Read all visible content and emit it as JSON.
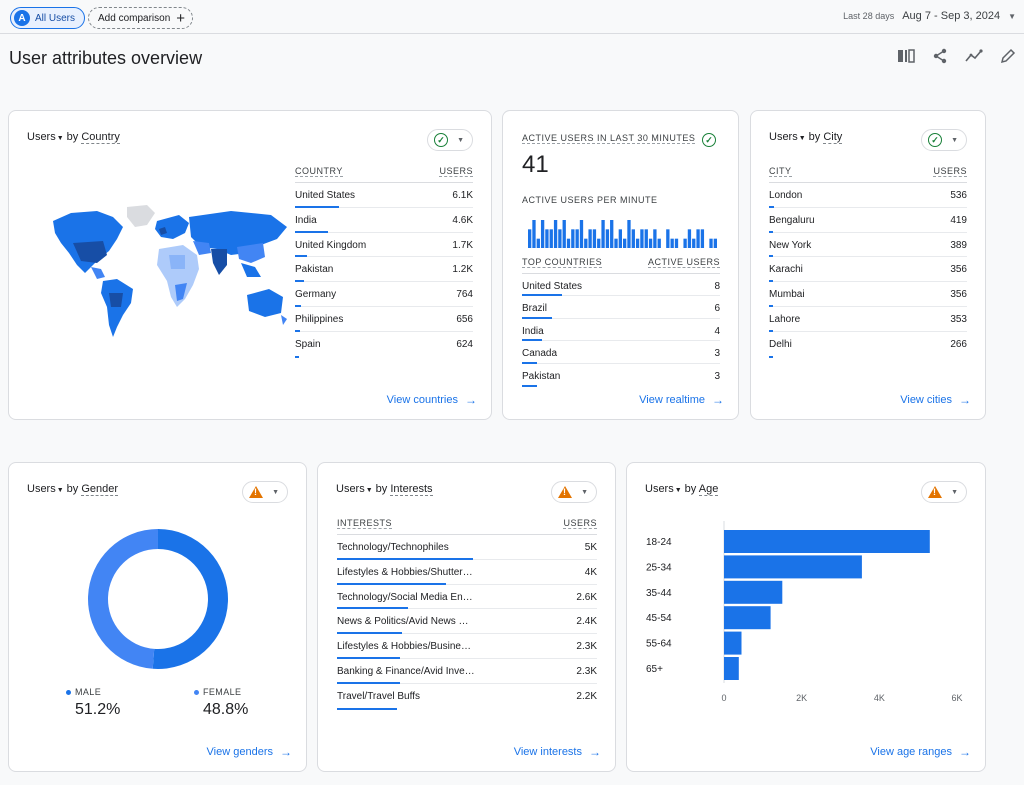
{
  "topbar": {
    "all_users_avatar": "A",
    "all_users_label": "All Users",
    "add_comparison_label": "Add comparison",
    "date_label": "Last 28 days",
    "date_range": "Aug 7 - Sep 3, 2024"
  },
  "page_title": "User attributes overview",
  "colors": {
    "accent": "#1a73e8",
    "accent_light": "#4285f4",
    "ok": "#188038",
    "warn": "#e37400"
  },
  "country_card": {
    "metric": "Users",
    "dim": "Country",
    "col_dim": "COUNTRY",
    "col_metric": "USERS",
    "rows": [
      {
        "name": "United States",
        "value": "6.1K",
        "share": 1.0
      },
      {
        "name": "India",
        "value": "4.6K",
        "share": 0.75
      },
      {
        "name": "United Kingdom",
        "value": "1.7K",
        "share": 0.28
      },
      {
        "name": "Pakistan",
        "value": "1.2K",
        "share": 0.2
      },
      {
        "name": "Germany",
        "value": "764",
        "share": 0.13
      },
      {
        "name": "Philippines",
        "value": "656",
        "share": 0.11
      },
      {
        "name": "Spain",
        "value": "624",
        "share": 0.1
      }
    ],
    "link": "View countries"
  },
  "realtime_card": {
    "title": "ACTIVE USERS IN LAST 30 MINUTES",
    "value": "41",
    "per_minute_label": "ACTIVE USERS PER MINUTE",
    "per_minute": [
      2,
      3,
      1,
      3,
      2,
      2,
      3,
      2,
      3,
      1,
      2,
      2,
      3,
      1,
      2,
      2,
      1,
      3,
      2,
      3,
      1,
      2,
      1,
      3,
      2,
      1,
      2,
      2,
      1,
      2,
      1,
      0,
      2,
      1,
      1,
      0,
      1,
      2,
      1,
      2,
      2,
      0,
      1,
      1
    ],
    "col_dim": "TOP COUNTRIES",
    "col_metric": "ACTIVE USERS",
    "rows": [
      {
        "name": "United States",
        "value": "8",
        "share": 1.0
      },
      {
        "name": "Brazil",
        "value": "6",
        "share": 0.75
      },
      {
        "name": "India",
        "value": "4",
        "share": 0.5
      },
      {
        "name": "Canada",
        "value": "3",
        "share": 0.38
      },
      {
        "name": "Pakistan",
        "value": "3",
        "share": 0.38
      }
    ],
    "link": "View realtime"
  },
  "city_card": {
    "metric": "Users",
    "dim": "City",
    "col_dim": "CITY",
    "col_metric": "USERS",
    "rows": [
      {
        "name": "London",
        "value": "536",
        "share": 0.04
      },
      {
        "name": "Bengaluru",
        "value": "419",
        "share": 0.03
      },
      {
        "name": "New York",
        "value": "389",
        "share": 0.03
      },
      {
        "name": "Karachi",
        "value": "356",
        "share": 0.025
      },
      {
        "name": "Mumbai",
        "value": "356",
        "share": 0.025
      },
      {
        "name": "Lahore",
        "value": "353",
        "share": 0.025
      },
      {
        "name": "Delhi",
        "value": "266",
        "share": 0.02
      }
    ],
    "link": "View cities"
  },
  "gender_card": {
    "metric": "Users",
    "dim": "Gender",
    "male_label": "MALE",
    "male_pct": "51.2%",
    "female_label": "FEMALE",
    "female_pct": "48.8%",
    "male_share": 0.512,
    "link": "View genders"
  },
  "interests_card": {
    "metric": "Users",
    "dim": "Interests",
    "col_dim": "INTERESTS",
    "col_metric": "USERS",
    "rows": [
      {
        "name": "Technology/Technophiles",
        "value": "5K",
        "share": 1.0
      },
      {
        "name": "Lifestyles & Hobbies/Shutter…",
        "value": "4K",
        "share": 0.8
      },
      {
        "name": "Technology/Social Media En…",
        "value": "2.6K",
        "share": 0.52
      },
      {
        "name": "News & Politics/Avid News …",
        "value": "2.4K",
        "share": 0.48
      },
      {
        "name": "Lifestyles & Hobbies/Busine…",
        "value": "2.3K",
        "share": 0.46
      },
      {
        "name": "Banking & Finance/Avid Inve…",
        "value": "2.3K",
        "share": 0.46
      },
      {
        "name": "Travel/Travel Buffs",
        "value": "2.2K",
        "share": 0.44
      }
    ],
    "link": "View interests"
  },
  "age_card": {
    "metric": "Users",
    "dim": "Age",
    "link": "View age ranges",
    "chart_data": {
      "type": "bar",
      "orientation": "horizontal",
      "categories": [
        "18-24",
        "25-34",
        "35-44",
        "45-54",
        "55-64",
        "65+"
      ],
      "values": [
        5300,
        3550,
        1500,
        1200,
        450,
        380
      ],
      "xlim": [
        0,
        6000
      ],
      "xticks": [
        "0",
        "2K",
        "4K",
        "6K"
      ]
    }
  }
}
